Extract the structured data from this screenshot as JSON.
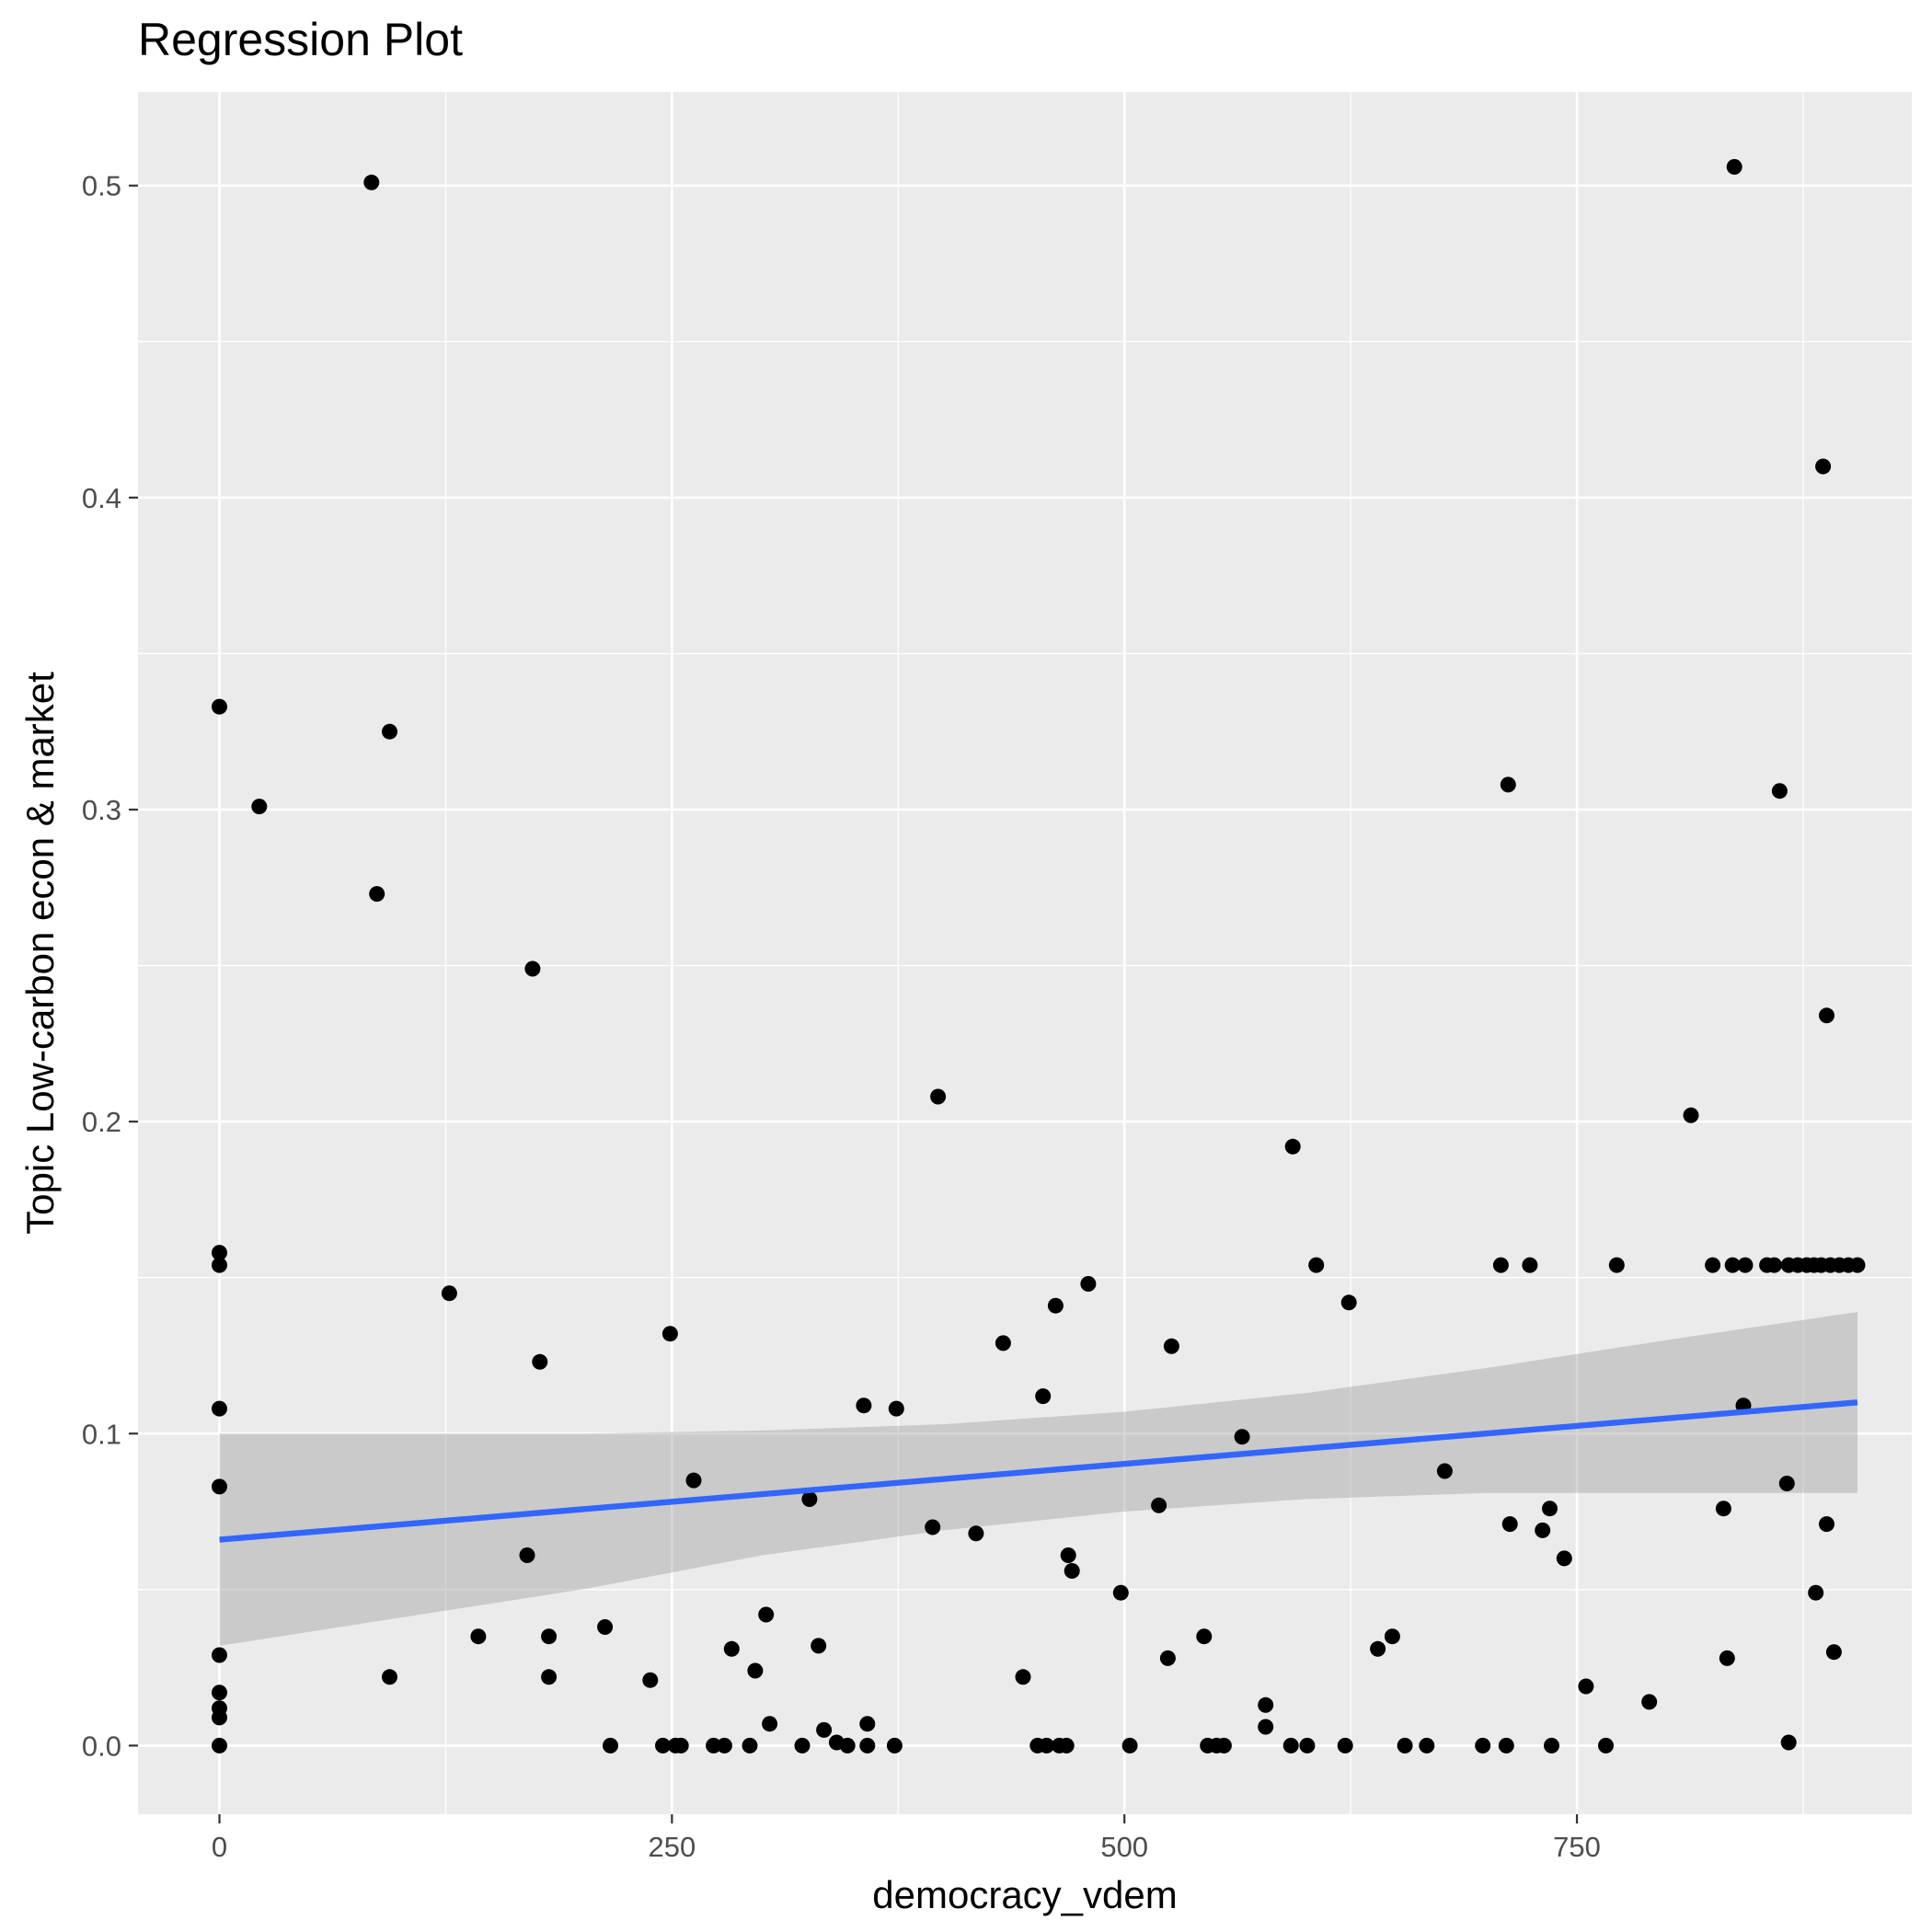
{
  "chart_data": {
    "type": "scatter",
    "title": "Regression Plot",
    "xlabel": "democracy_vdem",
    "ylabel": "Topic Low-carbon econ & market",
    "xlim": [
      -45,
      935
    ],
    "ylim": [
      -0.022,
      0.53
    ],
    "x_ticks": [
      0,
      250,
      500,
      750
    ],
    "x_tick_labels": [
      "0",
      "250",
      "500",
      "750"
    ],
    "y_ticks": [
      0.0,
      0.1,
      0.2,
      0.3,
      0.4,
      0.5
    ],
    "y_tick_labels": [
      "0.0",
      "0.1",
      "0.2",
      "0.3",
      "0.4",
      "0.5"
    ],
    "x_minor_ticks": [
      125,
      375,
      625,
      875
    ],
    "y_minor_ticks": [
      0.05,
      0.15,
      0.25,
      0.35,
      0.45
    ],
    "grid": true,
    "colors": {
      "panel_background": "#ebebeb",
      "grid": "#ffffff",
      "points": "#000000",
      "regression_line": "#3366ff",
      "confidence_band": "#999999"
    },
    "regression": {
      "x": [
        0,
        905
      ],
      "y": [
        0.066,
        0.11
      ],
      "band_x": [
        0,
        100,
        200,
        300,
        400,
        500,
        600,
        700,
        800,
        905
      ],
      "band_upper": [
        0.1,
        0.1,
        0.1,
        0.101,
        0.103,
        0.107,
        0.113,
        0.121,
        0.13,
        0.139
      ],
      "band_lower": [
        0.032,
        0.041,
        0.05,
        0.061,
        0.069,
        0.075,
        0.079,
        0.081,
        0.081,
        0.081
      ]
    },
    "points": [
      {
        "x": 0,
        "y": 0.333
      },
      {
        "x": 0,
        "y": 0.158
      },
      {
        "x": 0,
        "y": 0.154
      },
      {
        "x": 0,
        "y": 0.108
      },
      {
        "x": 0,
        "y": 0.083
      },
      {
        "x": 0,
        "y": 0.029
      },
      {
        "x": 0,
        "y": 0.017
      },
      {
        "x": 0,
        "y": 0.012
      },
      {
        "x": 0,
        "y": 0.009
      },
      {
        "x": 0,
        "y": 0.0
      },
      {
        "x": 22,
        "y": 0.301
      },
      {
        "x": 84,
        "y": 0.501
      },
      {
        "x": 87,
        "y": 0.273
      },
      {
        "x": 94,
        "y": 0.325
      },
      {
        "x": 94,
        "y": 0.022
      },
      {
        "x": 127,
        "y": 0.145
      },
      {
        "x": 143,
        "y": 0.035
      },
      {
        "x": 170,
        "y": 0.061
      },
      {
        "x": 173,
        "y": 0.249
      },
      {
        "x": 177,
        "y": 0.123
      },
      {
        "x": 182,
        "y": 0.035
      },
      {
        "x": 182,
        "y": 0.022
      },
      {
        "x": 213,
        "y": 0.038
      },
      {
        "x": 216,
        "y": 0.0
      },
      {
        "x": 238,
        "y": 0.021
      },
      {
        "x": 245,
        "y": 0.0
      },
      {
        "x": 249,
        "y": 0.132
      },
      {
        "x": 252,
        "y": 0.0
      },
      {
        "x": 255,
        "y": 0.0
      },
      {
        "x": 262,
        "y": 0.085
      },
      {
        "x": 273,
        "y": 0.0
      },
      {
        "x": 279,
        "y": 0.0
      },
      {
        "x": 283,
        "y": 0.031
      },
      {
        "x": 293,
        "y": 0.0
      },
      {
        "x": 296,
        "y": 0.024
      },
      {
        "x": 302,
        "y": 0.042
      },
      {
        "x": 304,
        "y": 0.007
      },
      {
        "x": 322,
        "y": 0.0
      },
      {
        "x": 326,
        "y": 0.079
      },
      {
        "x": 331,
        "y": 0.032
      },
      {
        "x": 334,
        "y": 0.005
      },
      {
        "x": 341,
        "y": 0.001
      },
      {
        "x": 347,
        "y": 0.0
      },
      {
        "x": 356,
        "y": 0.109
      },
      {
        "x": 358,
        "y": 0.0
      },
      {
        "x": 358,
        "y": 0.007
      },
      {
        "x": 373,
        "y": 0.0
      },
      {
        "x": 374,
        "y": 0.108
      },
      {
        "x": 394,
        "y": 0.07
      },
      {
        "x": 397,
        "y": 0.208
      },
      {
        "x": 418,
        "y": 0.068
      },
      {
        "x": 433,
        "y": 0.129
      },
      {
        "x": 444,
        "y": 0.022
      },
      {
        "x": 452,
        "y": 0.0
      },
      {
        "x": 455,
        "y": 0.112
      },
      {
        "x": 457,
        "y": 0.0
      },
      {
        "x": 462,
        "y": 0.141
      },
      {
        "x": 464,
        "y": 0.0
      },
      {
        "x": 468,
        "y": 0.0
      },
      {
        "x": 469,
        "y": 0.061
      },
      {
        "x": 471,
        "y": 0.056
      },
      {
        "x": 480,
        "y": 0.148
      },
      {
        "x": 498,
        "y": 0.049
      },
      {
        "x": 503,
        "y": 0.0
      },
      {
        "x": 519,
        "y": 0.077
      },
      {
        "x": 524,
        "y": 0.028
      },
      {
        "x": 526,
        "y": 0.128
      },
      {
        "x": 544,
        "y": 0.035
      },
      {
        "x": 546,
        "y": 0.0
      },
      {
        "x": 551,
        "y": 0.0
      },
      {
        "x": 555,
        "y": 0.0
      },
      {
        "x": 565,
        "y": 0.099
      },
      {
        "x": 578,
        "y": 0.013
      },
      {
        "x": 578,
        "y": 0.006
      },
      {
        "x": 592,
        "y": 0.0
      },
      {
        "x": 593,
        "y": 0.192
      },
      {
        "x": 601,
        "y": 0.0
      },
      {
        "x": 606,
        "y": 0.154
      },
      {
        "x": 622,
        "y": 0.0
      },
      {
        "x": 624,
        "y": 0.142
      },
      {
        "x": 640,
        "y": 0.031
      },
      {
        "x": 648,
        "y": 0.035
      },
      {
        "x": 655,
        "y": 0.0
      },
      {
        "x": 667,
        "y": 0.0
      },
      {
        "x": 677,
        "y": 0.088
      },
      {
        "x": 698,
        "y": 0.0
      },
      {
        "x": 708,
        "y": 0.154
      },
      {
        "x": 711,
        "y": 0.0
      },
      {
        "x": 712,
        "y": 0.308
      },
      {
        "x": 713,
        "y": 0.071
      },
      {
        "x": 724,
        "y": 0.154
      },
      {
        "x": 731,
        "y": 0.069
      },
      {
        "x": 735,
        "y": 0.076
      },
      {
        "x": 736,
        "y": 0.0
      },
      {
        "x": 743,
        "y": 0.06
      },
      {
        "x": 755,
        "y": 0.019
      },
      {
        "x": 766,
        "y": 0.0
      },
      {
        "x": 772,
        "y": 0.154
      },
      {
        "x": 790,
        "y": 0.014
      },
      {
        "x": 813,
        "y": 0.202
      },
      {
        "x": 825,
        "y": 0.154
      },
      {
        "x": 831,
        "y": 0.076
      },
      {
        "x": 833,
        "y": 0.028
      },
      {
        "x": 836,
        "y": 0.154
      },
      {
        "x": 837,
        "y": 0.506
      },
      {
        "x": 842,
        "y": 0.109
      },
      {
        "x": 843,
        "y": 0.154
      },
      {
        "x": 855,
        "y": 0.154
      },
      {
        "x": 859,
        "y": 0.154
      },
      {
        "x": 862,
        "y": 0.306
      },
      {
        "x": 866,
        "y": 0.084
      },
      {
        "x": 867,
        "y": 0.001
      },
      {
        "x": 867,
        "y": 0.154
      },
      {
        "x": 872,
        "y": 0.154
      },
      {
        "x": 877,
        "y": 0.154
      },
      {
        "x": 881,
        "y": 0.154
      },
      {
        "x": 882,
        "y": 0.049
      },
      {
        "x": 885,
        "y": 0.154
      },
      {
        "x": 886,
        "y": 0.41
      },
      {
        "x": 888,
        "y": 0.234
      },
      {
        "x": 888,
        "y": 0.071
      },
      {
        "x": 890,
        "y": 0.154
      },
      {
        "x": 892,
        "y": 0.03
      },
      {
        "x": 895,
        "y": 0.154
      },
      {
        "x": 900,
        "y": 0.154
      },
      {
        "x": 905,
        "y": 0.154
      }
    ]
  }
}
